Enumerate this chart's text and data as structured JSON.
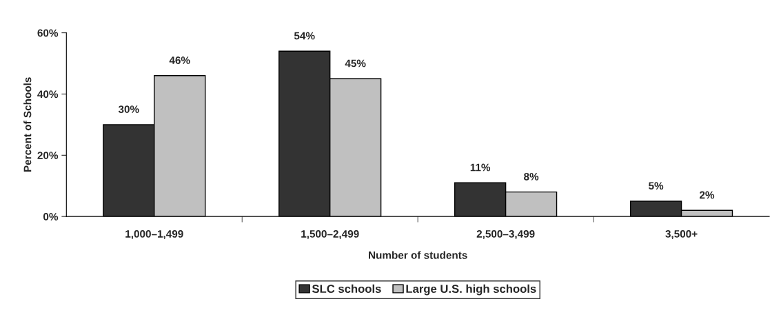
{
  "chart_data": {
    "type": "bar",
    "xlabel": "Number of students",
    "ylabel": "Percent of Schools",
    "categories": [
      "1,000–1,499",
      "1,500–2,499",
      "2,500–3,499",
      "3,500+"
    ],
    "series": [
      {
        "name": "SLC schools",
        "color": "#333333",
        "values": [
          30,
          54,
          11,
          5
        ],
        "value_labels": [
          "30%",
          "54%",
          "11%",
          "5%"
        ]
      },
      {
        "name": "Large U.S. high schools",
        "color": "#c0c0c0",
        "values": [
          46,
          45,
          8,
          2
        ],
        "value_labels": [
          "46%",
          "45%",
          "8%",
          "2%"
        ]
      }
    ],
    "ylim": [
      0,
      60
    ],
    "yticks": [
      {
        "value": 0,
        "label": "0%"
      },
      {
        "value": 20,
        "label": "20%"
      },
      {
        "value": 40,
        "label": "40%"
      },
      {
        "value": 60,
        "label": "60%"
      }
    ],
    "grid": false,
    "legend": "bottom"
  }
}
